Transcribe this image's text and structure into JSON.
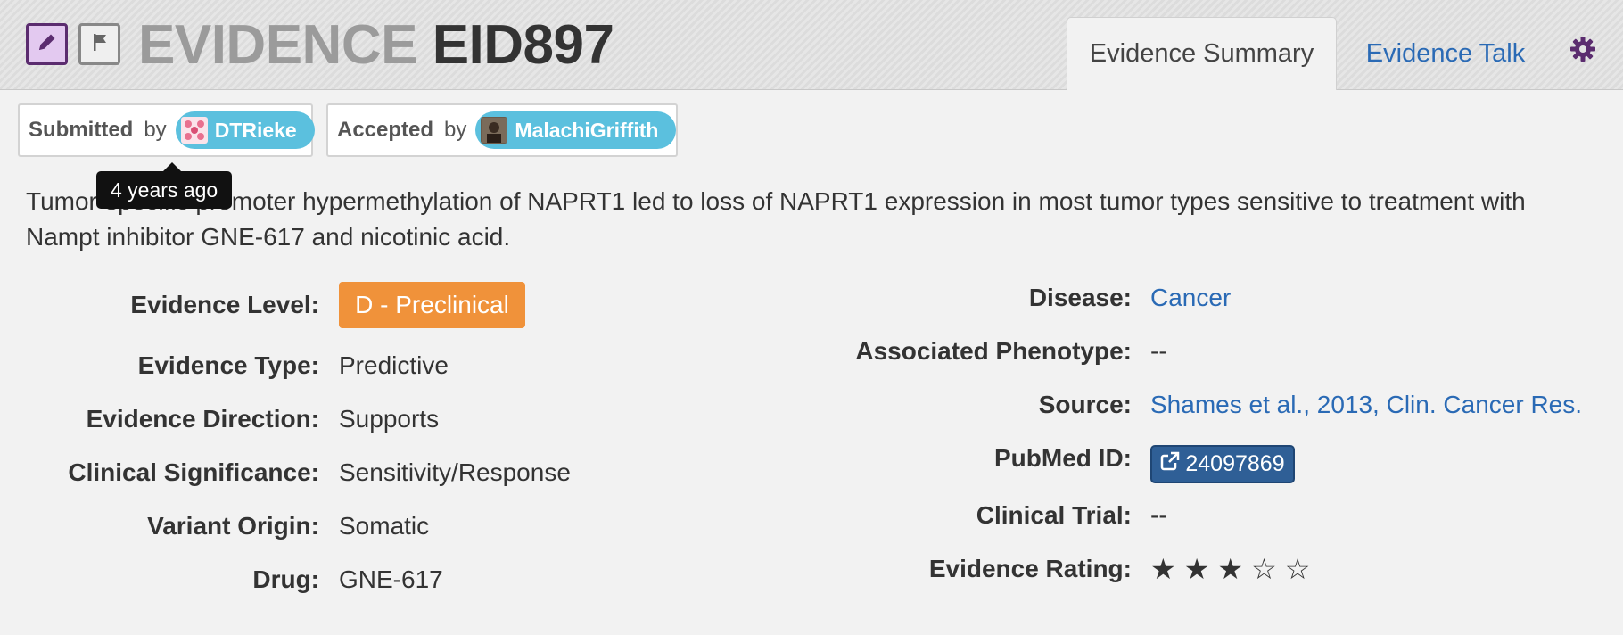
{
  "header": {
    "title_prefix": "EVIDENCE",
    "title_id": "EID897",
    "edit_icon": "pencil-icon",
    "flag_icon": "flag-icon"
  },
  "tabs": [
    {
      "label": "Evidence Summary",
      "active": true
    },
    {
      "label": "Evidence Talk",
      "active": false
    }
  ],
  "settings_icon": "gear-icon",
  "submitted": {
    "verb": "Submitted",
    "by": "by",
    "user": "DTRieke"
  },
  "accepted": {
    "verb": "Accepted",
    "by": "by",
    "user": "MalachiGriffith"
  },
  "tooltip": "4 years ago",
  "description": "Tumor-specific promoter hypermethylation of NAPRT1 led to loss of NAPRT1 expression in most tumor types sensitive to treatment with Nampt inhibitor GNE-617 and nicotinic acid.",
  "left_fields": [
    {
      "label": "Evidence Level:",
      "value": "D - Preclinical"
    },
    {
      "label": "Evidence Type:",
      "value": "Predictive"
    },
    {
      "label": "Evidence Direction:",
      "value": "Supports"
    },
    {
      "label": "Clinical Significance:",
      "value": "Sensitivity/Response"
    },
    {
      "label": "Variant Origin:",
      "value": "Somatic"
    },
    {
      "label": "Drug:",
      "value": "GNE-617"
    }
  ],
  "right_fields": [
    {
      "label": "Disease:",
      "value": "Cancer"
    },
    {
      "label": "Associated Phenotype:",
      "value": "--"
    },
    {
      "label": "Source:",
      "value": "Shames et al., 2013, Clin. Cancer Res."
    },
    {
      "label": "PubMed ID:",
      "value": "24097869"
    },
    {
      "label": "Clinical Trial:",
      "value": "--"
    },
    {
      "label": "Evidence Rating:",
      "value": "★★★☆☆"
    }
  ],
  "rating": {
    "filled": 3,
    "max": 5
  },
  "colors": {
    "accent_purple": "#5b2c6f",
    "link_blue": "#2a6ab5",
    "level_orange": "#f0923a",
    "user_pill": "#5bc0de",
    "pubmed_button": "#2f5f96"
  }
}
